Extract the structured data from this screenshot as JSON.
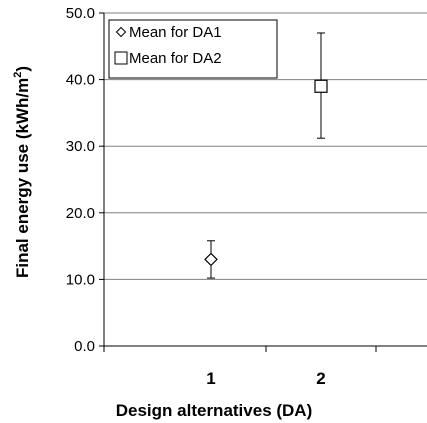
{
  "chart_data": {
    "type": "scatter",
    "xlabel": "Design alternatives (DA)",
    "ylabel_prefix": "Final energy use (kWh/m",
    "ylabel_superscript": "2",
    "ylabel_suffix": ")",
    "ylim": [
      0,
      50
    ],
    "yticks": [
      "0.0",
      "10.0",
      "20.0",
      "30.0",
      "40.0",
      "50.0"
    ],
    "x_categories": [
      "1",
      "2"
    ],
    "grid": "horizontal",
    "legend_position": "top-left",
    "series": [
      {
        "name": "Mean for DA1",
        "marker": "diamond",
        "x": 1,
        "y": 13.0,
        "error_low": 10.2,
        "error_high": 15.8
      },
      {
        "name": "Mean for DA2",
        "marker": "square",
        "x": 2,
        "y": 39.0,
        "error_low": 31.2,
        "error_high": 47.0
      }
    ],
    "colors": {
      "axis": "#000000",
      "grid": "#808080",
      "marker": "#000000"
    }
  }
}
